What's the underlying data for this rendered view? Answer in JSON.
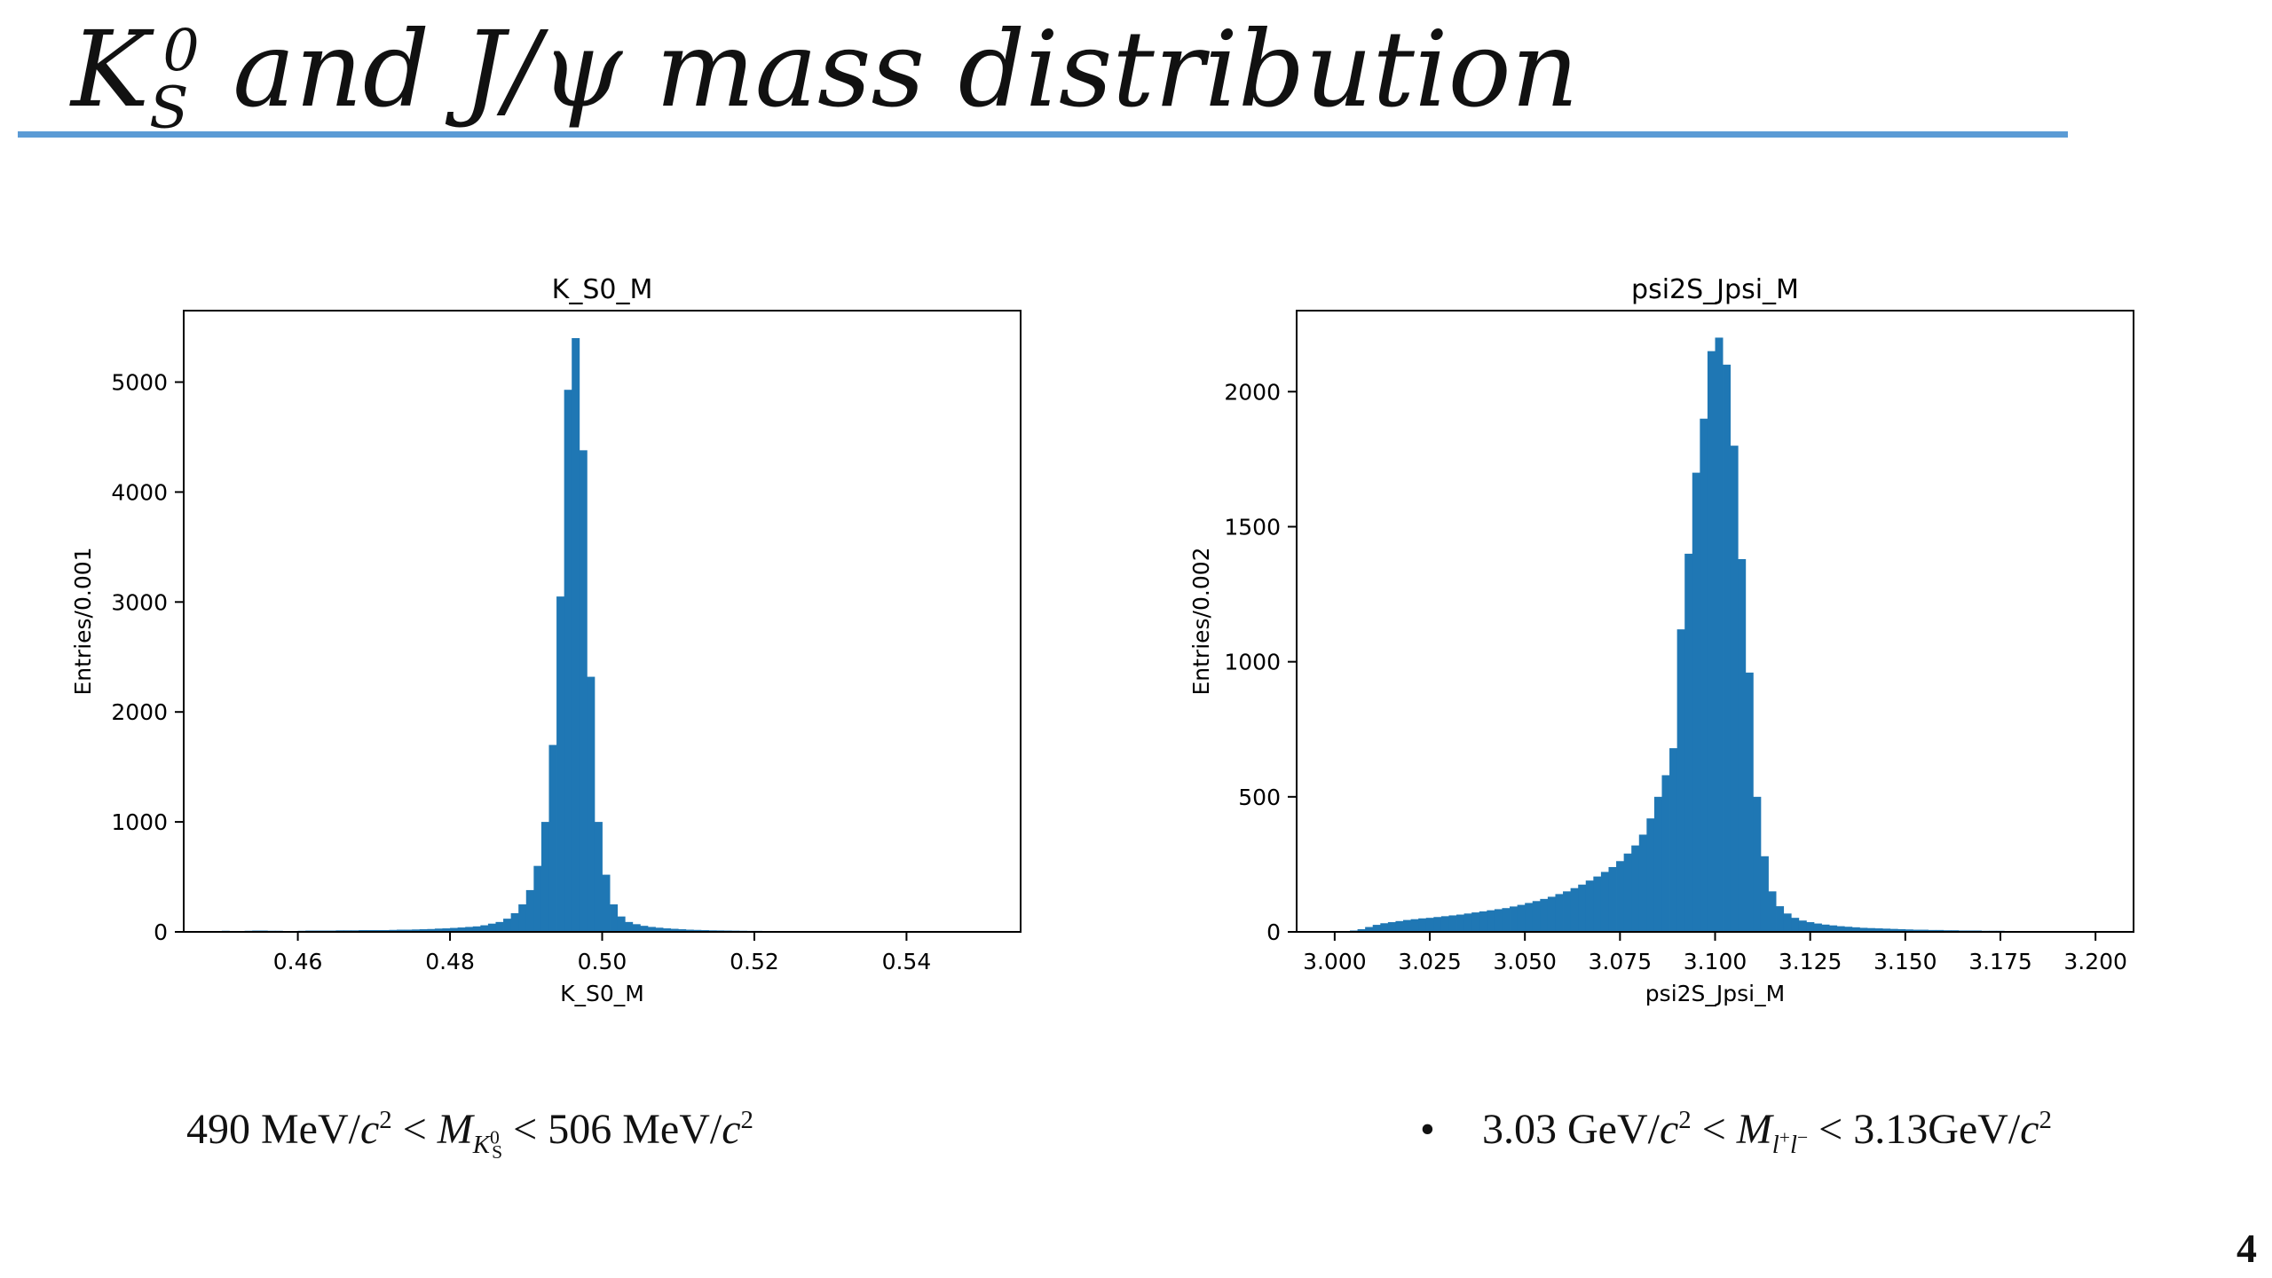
{
  "slide": {
    "title": {
      "K": "K",
      "sub": "S",
      "sup": "0",
      "rest": " and J/ψ  mass distribution"
    },
    "page_number": "4",
    "accent_color": "#5b9bd5",
    "bar_color": "#1f77b4"
  },
  "cuts": {
    "kshort": {
      "left": "490 MeV/",
      "c1": "c",
      "exp1": "2",
      "lt1": " < ",
      "M": "M",
      "M_sub_K": "K",
      "M_sub_sup": "0",
      "M_sub_sub": "S",
      "lt2": " < 506 MeV/",
      "c2": "c",
      "exp2": "2"
    },
    "jpsi": {
      "bullet": "•",
      "left": "3.03 GeV/",
      "c1": "c",
      "exp1": "2",
      "lt1": " < ",
      "M": "M",
      "M_sub": "l",
      "M_sub_sup1": "+",
      "M_sub_l2": "l",
      "M_sub_sup2": "−",
      "lt2": "  < 3.13GeV/",
      "c2": "c",
      "exp2": "2"
    }
  },
  "chart_data": [
    {
      "type": "bar",
      "title": "K_S0_M",
      "xlabel": "K_S0_M",
      "ylabel": "Entries/0.001",
      "xlim": [
        0.445,
        0.555
      ],
      "ylim": [
        0,
        5650
      ],
      "xticks": [
        "0.46",
        "0.48",
        "0.50",
        "0.52",
        "0.54"
      ],
      "xtick_values": [
        0.46,
        0.48,
        0.5,
        0.52,
        0.54
      ],
      "yticks": [
        "0",
        "1000",
        "2000",
        "3000",
        "4000",
        "5000"
      ],
      "ytick_values": [
        0,
        1000,
        2000,
        3000,
        4000,
        5000
      ],
      "bin_start": 0.45,
      "bin_width": 0.001,
      "values": [
        10,
        8,
        8,
        10,
        12,
        12,
        10,
        10,
        8,
        8,
        10,
        12,
        12,
        12,
        12,
        14,
        14,
        14,
        16,
        16,
        16,
        16,
        18,
        20,
        20,
        22,
        24,
        26,
        30,
        32,
        36,
        40,
        45,
        50,
        60,
        75,
        90,
        120,
        170,
        250,
        380,
        600,
        1000,
        1700,
        3050,
        4930,
        5400,
        4380,
        2320,
        1000,
        520,
        250,
        140,
        90,
        70,
        55,
        45,
        38,
        32,
        28,
        24,
        20,
        18,
        16,
        14,
        13,
        12,
        11,
        10,
        9,
        9,
        8,
        8,
        7,
        7,
        6,
        6
      ]
    },
    {
      "type": "bar",
      "title": "psi2S_Jpsi_M",
      "xlabel": "psi2S_Jpsi_M",
      "ylabel": "Entries/0.002",
      "xlim": [
        2.99,
        3.21
      ],
      "ylim": [
        0,
        2300
      ],
      "xticks": [
        "3.000",
        "3.025",
        "3.050",
        "3.075",
        "3.100",
        "3.125",
        "3.150",
        "3.175",
        "3.200"
      ],
      "xtick_values": [
        3.0,
        3.025,
        3.05,
        3.075,
        3.1,
        3.125,
        3.15,
        3.175,
        3.2
      ],
      "yticks": [
        "0",
        "500",
        "1000",
        "1500",
        "2000"
      ],
      "ytick_values": [
        0,
        500,
        1000,
        1500,
        2000
      ],
      "bin_start": 3.0,
      "bin_width": 0.002,
      "values": [
        2,
        3,
        5,
        10,
        18,
        26,
        32,
        36,
        40,
        44,
        47,
        50,
        52,
        55,
        58,
        61,
        64,
        68,
        72,
        76,
        80,
        84,
        88,
        94,
        100,
        107,
        114,
        122,
        130,
        140,
        150,
        162,
        175,
        190,
        205,
        222,
        240,
        262,
        290,
        320,
        360,
        420,
        500,
        580,
        680,
        1120,
        1400,
        1700,
        1900,
        2150,
        2200,
        2100,
        1800,
        1380,
        960,
        500,
        280,
        150,
        95,
        68,
        52,
        42,
        36,
        31,
        27,
        24,
        21,
        19,
        17,
        15,
        14,
        13,
        12,
        11,
        10,
        9,
        8,
        8,
        7,
        7,
        6,
        6,
        5,
        5,
        5,
        4,
        4,
        4,
        3,
        3,
        3,
        3,
        2,
        2,
        2,
        2,
        2,
        2,
        2,
        2
      ]
    }
  ]
}
